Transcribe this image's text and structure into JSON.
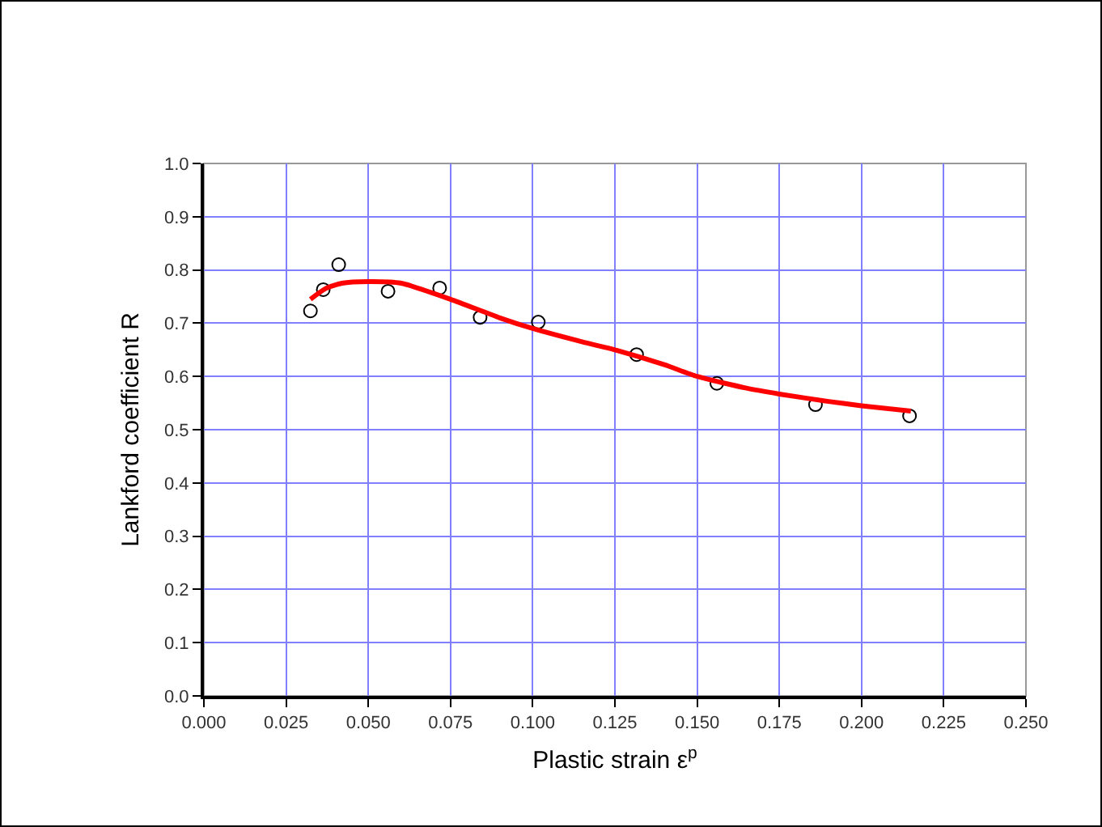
{
  "chart_data": {
    "type": "scatter",
    "xlabel": "Plastic strain ε$^{p}$",
    "ylabel": "Lankford coefficient R",
    "series": [
      {
        "type": "scatter",
        "color": "#000000",
        "marker": "circle",
        "x": [
          0.0324,
          0.0363,
          0.041,
          0.056,
          0.0717,
          0.084,
          0.1017,
          0.1316,
          0.156,
          0.186,
          0.2146
        ],
        "values": [
          0.723,
          0.763,
          0.81,
          0.76,
          0.766,
          0.711,
          0.702,
          0.641,
          0.587,
          0.547,
          0.526
        ]
      },
      {
        "type": "line",
        "color": "#ff0000",
        "marker": "none",
        "x": [
          0.0324,
          0.037,
          0.042,
          0.05,
          0.06,
          0.075,
          0.09,
          0.1,
          0.115,
          0.125,
          0.14,
          0.15,
          0.165,
          0.175,
          0.19,
          0.2,
          0.215
        ],
        "values": [
          0.745,
          0.765,
          0.775,
          0.778,
          0.775,
          0.745,
          0.71,
          0.69,
          0.665,
          0.65,
          0.622,
          0.6,
          0.578,
          0.567,
          0.553,
          0.545,
          0.535
        ]
      }
    ],
    "xlim": [
      0,
      0.25
    ],
    "xticks": [
      {
        "value": 0,
        "label": "0.000"
      },
      0.025,
      {
        "value": 0.05,
        "label": "0.050"
      },
      0.075,
      {
        "value": 0.1,
        "label": "0.100"
      },
      0.125,
      {
        "value": 0.15,
        "label": "0.150"
      },
      0.175,
      {
        "value": 0.2,
        "label": "0.200"
      },
      0.225,
      {
        "value": 0.25,
        "label": "0.250"
      }
    ],
    "ylim": [
      0,
      1
    ],
    "yticks": [
      {
        "value": 0,
        "label": "0.0"
      },
      0.1,
      0.2,
      0.3,
      0.4,
      0.5,
      0.6,
      0.7,
      0.8,
      0.9,
      {
        "value": 1,
        "label": "1.0"
      }
    ],
    "grid": true
  }
}
